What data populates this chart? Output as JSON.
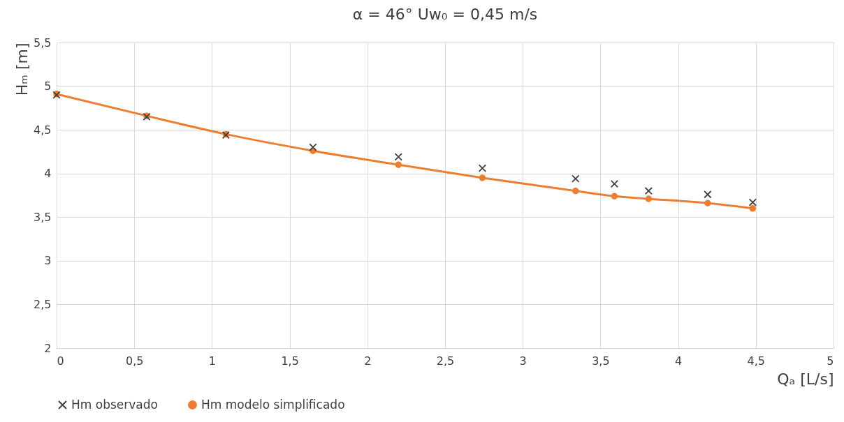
{
  "chart_data": {
    "type": "line",
    "title": "α = 46°       Uw₀ = 0,45 m/s",
    "xlabel": "Qₐ [L/s]",
    "ylabel": "Hₘ [m]",
    "xlim": [
      0,
      5
    ],
    "ylim": [
      2,
      5.5
    ],
    "xticks": [
      0,
      {
        "value": 0.5,
        "label": "0,5"
      },
      1,
      {
        "value": 1.5,
        "label": "1,5"
      },
      2,
      {
        "value": 2.5,
        "label": "2,5"
      },
      3,
      {
        "value": 3.5,
        "label": "3,5"
      },
      4,
      {
        "value": 4.5,
        "label": "4,5"
      },
      5
    ],
    "yticks": [
      2,
      {
        "value": 2.5,
        "label": "2,5"
      },
      3,
      {
        "value": 3.5,
        "label": "3,5"
      },
      4,
      {
        "value": 4.5,
        "label": "4,5"
      },
      5,
      {
        "value": 5.5,
        "label": "5,5"
      }
    ],
    "grid": true,
    "legend": "bottom",
    "x": [
      0,
      0.58,
      1.09,
      1.65,
      2.2,
      2.74,
      3.34,
      3.59,
      3.81,
      4.19,
      4.48
    ],
    "series": [
      {
        "name": "Hm observado",
        "type": "scatter",
        "marker": "cross",
        "color": "#404040",
        "values": [
          4.9,
          4.65,
          4.44,
          4.3,
          4.19,
          4.06,
          3.94,
          3.88,
          3.8,
          3.76,
          3.67
        ]
      },
      {
        "name": "Hm modelo simplificado",
        "type": "line",
        "marker": "circle",
        "color": "#ed7d31",
        "values": [
          4.91,
          4.66,
          4.45,
          4.26,
          4.1,
          3.95,
          3.8,
          3.74,
          3.71,
          3.66,
          3.6
        ]
      }
    ]
  }
}
